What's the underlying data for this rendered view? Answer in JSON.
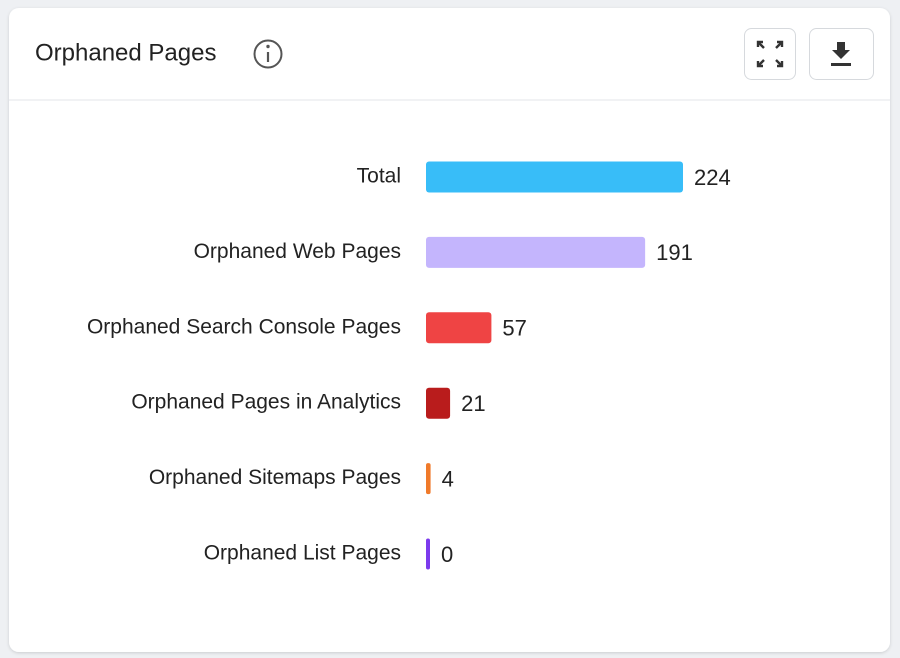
{
  "chart_data": {
    "type": "hbar",
    "title": "Orphaned Pages",
    "categories": [
      "Total",
      "Orphaned Web Pages",
      "Orphaned Search Console Pages",
      "Orphaned Pages in Analytics",
      "Orphaned Sitemaps Pages",
      "Orphaned List Pages"
    ],
    "values": [
      224,
      191,
      57,
      21,
      4,
      0
    ],
    "colors": [
      "#38bdf8",
      "#c4b5fd",
      "#ef4444",
      "#b91c1c",
      "#f07a2a",
      "#7c3aed"
    ]
  }
}
